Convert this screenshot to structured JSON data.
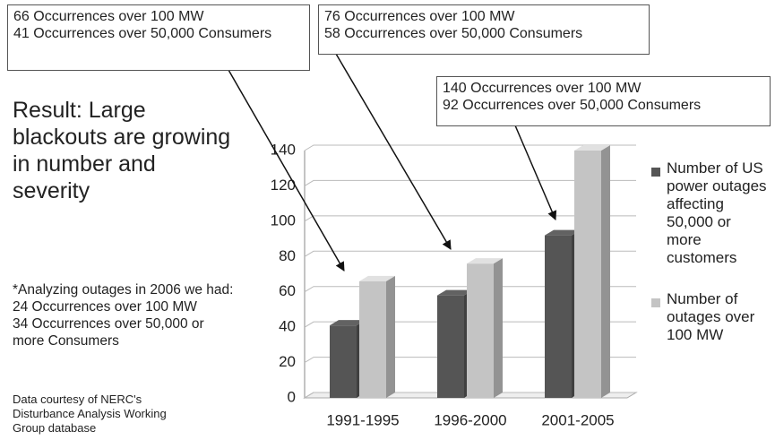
{
  "chart_data": {
    "type": "bar",
    "title": "Result: Large blackouts are growing in number and severity",
    "annotations": [
      [
        "66 Occurrences over 100 MW",
        "41 Occurrences over 50,000 Consumers"
      ],
      [
        "76 Occurrences over 100 MW",
        "58 Occurrences over 50,000 Consumers"
      ],
      [
        "140 Occurrences over 100 MW",
        "92 Occurrences over 50,000 Consumers"
      ]
    ],
    "note": [
      "*Analyzing outages in 2006 we had:",
      "24 Occurrences over 100 MW",
      "34 Occurrences over 50,000 or more Consumers"
    ],
    "source": "Data courtesy of NERC's Disturbance Analysis Working Group database",
    "categories": [
      "1991-1995",
      "1996-2000",
      "2001-2005"
    ],
    "series": [
      {
        "name": "Number of US power outages affecting 50,000 or more customers",
        "color": "#555555",
        "values": [
          41,
          58,
          92
        ]
      },
      {
        "name": "Number of outages over 100 MW",
        "color": "#c4c4c4",
        "values": [
          66,
          76,
          140
        ]
      }
    ],
    "ylim": [
      0,
      140
    ],
    "yticks": [
      0,
      20,
      40,
      60,
      80,
      100,
      120,
      140
    ],
    "grid": true
  }
}
